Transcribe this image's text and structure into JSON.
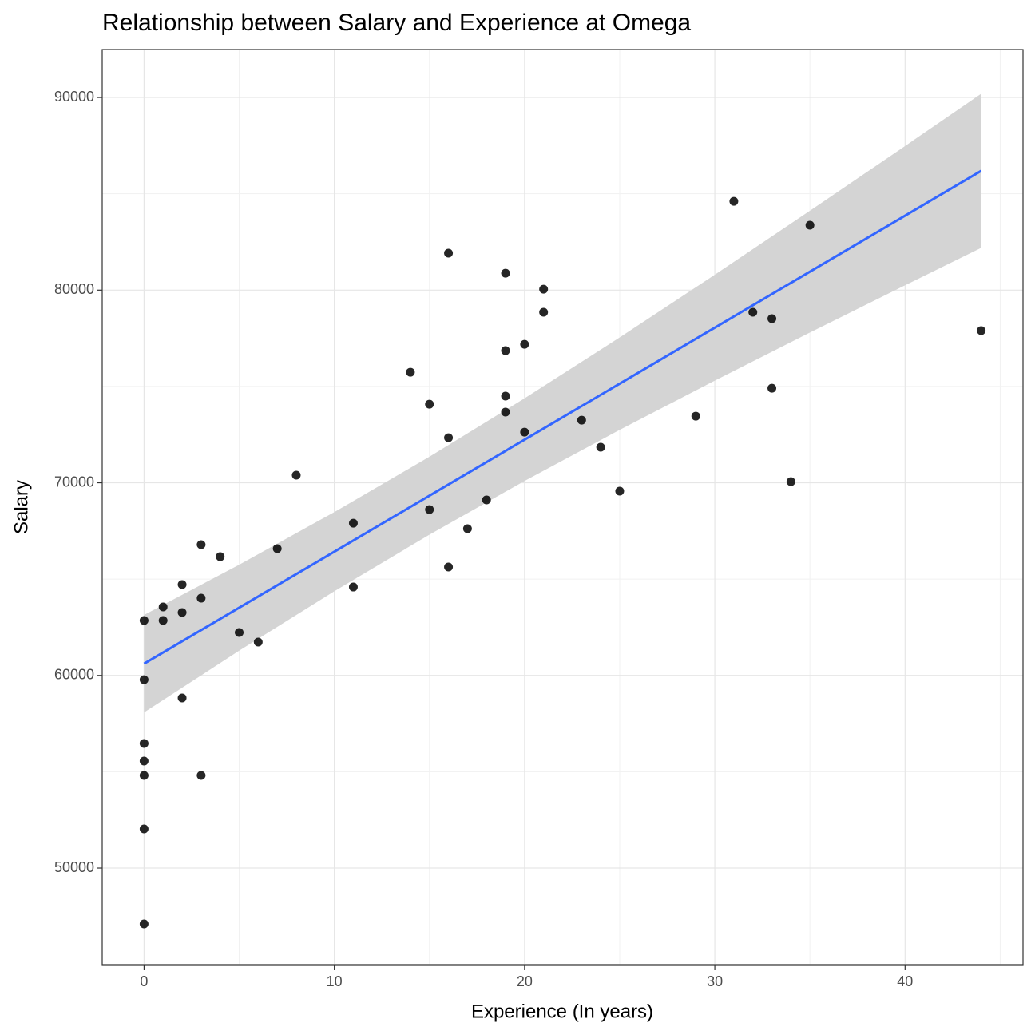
{
  "chart_data": {
    "type": "scatter",
    "title": "Relationship between Salary and Experience at Omega",
    "x_label": "Experience (In years)",
    "y_label": "Salary",
    "xlim": [
      -2.2,
      46.2
    ],
    "ylim": [
      44985,
      92490
    ],
    "xticks": [
      0,
      10,
      20,
      30,
      40
    ],
    "yticks": [
      50000,
      60000,
      70000,
      80000,
      90000
    ],
    "xminor": [
      5,
      15,
      25,
      35,
      45
    ],
    "yminor": [
      45000,
      55000,
      65000,
      75000,
      85000
    ],
    "grid": true,
    "color": "#000000",
    "x": [
      0,
      0,
      0,
      0,
      0,
      0,
      0,
      1,
      1,
      2,
      2,
      2,
      3,
      3,
      3,
      4,
      5,
      6,
      7,
      8,
      11,
      11,
      14,
      15,
      15,
      16,
      16,
      16,
      17,
      18,
      19,
      19,
      19,
      19,
      20,
      20,
      21,
      21,
      23,
      24,
      25,
      29,
      31,
      32,
      33,
      33,
      34,
      35,
      44
    ],
    "values": [
      62850,
      59780,
      56470,
      55555,
      54810,
      52030,
      47100,
      63555,
      62850,
      64715,
      63265,
      58830,
      66790,
      64010,
      54810,
      66165,
      62230,
      61730,
      66580,
      70395,
      67905,
      64590,
      75740,
      74080,
      68610,
      81920,
      72340,
      65630,
      67620,
      69110,
      80880,
      76860,
      74500,
      73670,
      77190,
      72630,
      80050,
      78850,
      73250,
      71845,
      69565,
      73460,
      84610,
      78850,
      78520,
      74910,
      70060,
      83370,
      77900
    ],
    "fit": {
      "color": "#3366ff",
      "band_color": "#d4d4d4",
      "x": [
        0,
        5,
        10,
        15,
        20,
        25,
        30,
        35,
        40,
        44
      ],
      "values": [
        60610,
        63517,
        66424,
        69331,
        72238,
        75145,
        78052,
        80959,
        83866,
        86192
      ],
      "upper": [
        63140,
        65750,
        68478,
        71353,
        74383,
        77544,
        80800,
        84120,
        87481,
        90192
      ],
      "lower": [
        58080,
        61284,
        64370,
        67309,
        70093,
        72746,
        75304,
        77798,
        80251,
        82192
      ]
    }
  }
}
